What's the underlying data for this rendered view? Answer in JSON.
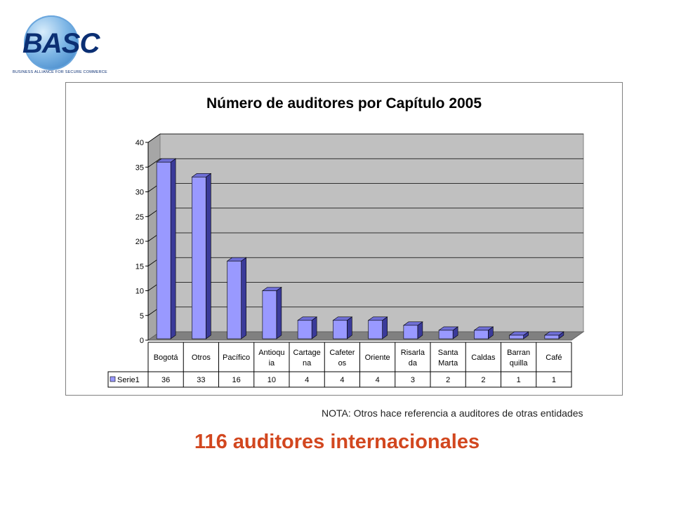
{
  "logo": {
    "mark": "BASC",
    "tagline": "BUSINESS ALLIANCE FOR SECURE COMMERCE"
  },
  "chart_data": {
    "type": "bar",
    "title": "Número de auditores por Capítulo 2005",
    "categories": [
      [
        "Bogotá"
      ],
      [
        "Otros"
      ],
      [
        "Pacífico"
      ],
      [
        "Antioqu",
        "ia"
      ],
      [
        "Cartage",
        "na"
      ],
      [
        "Cafeter",
        "os"
      ],
      [
        "Oriente"
      ],
      [
        "Risarla",
        "da"
      ],
      [
        "Santa",
        "Marta"
      ],
      [
        "Caldas"
      ],
      [
        "Barran",
        "quilla"
      ],
      [
        "Café"
      ]
    ],
    "series": [
      {
        "name": "Serie1",
        "values": [
          36,
          33,
          16,
          10,
          4,
          4,
          4,
          3,
          2,
          2,
          1,
          1
        ]
      }
    ],
    "ylim": [
      0,
      40
    ],
    "yticks": [
      0,
      5,
      10,
      15,
      20,
      25,
      30,
      35,
      40
    ],
    "grid": true,
    "bar_color": "#9999ff",
    "plot_bg": "#c0c0c0"
  },
  "note": "NOTA: Otros hace referencia a auditores de otras entidades",
  "headline": "116 auditores internacionales"
}
